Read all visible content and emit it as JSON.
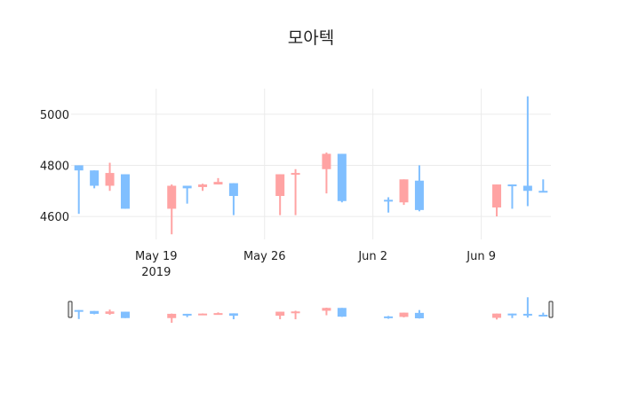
{
  "title": "모아텍",
  "chart_data": {
    "type": "candlestick",
    "title": "모아텍",
    "xlabel": "",
    "ylabel": "",
    "ylim": [
      4510,
      5100
    ],
    "yticks": [
      4600,
      4800,
      5000
    ],
    "xticks": [
      {
        "date": "2019-05-19",
        "label": "May 19",
        "sublabel": "2019"
      },
      {
        "date": "2019-05-26",
        "label": "May 26",
        "sublabel": ""
      },
      {
        "date": "2019-06-02",
        "label": "Jun 2",
        "sublabel": ""
      },
      {
        "date": "2019-06-09",
        "label": "Jun 9",
        "sublabel": ""
      }
    ],
    "xrange": [
      "2019-05-13T12:00",
      "2019-06-13T12:00"
    ],
    "grid": true,
    "legend": false,
    "rangeslider": true,
    "increasing_color": "#ffa3a3",
    "decreasing_color": "#80bfff",
    "x": [
      "2019-05-14",
      "2019-05-15",
      "2019-05-16",
      "2019-05-17",
      "2019-05-20",
      "2019-05-21",
      "2019-05-22",
      "2019-05-23",
      "2019-05-24",
      "2019-05-27",
      "2019-05-28",
      "2019-05-30",
      "2019-05-31",
      "2019-06-03",
      "2019-06-04",
      "2019-06-05",
      "2019-06-10",
      "2019-06-11",
      "2019-06-12",
      "2019-06-13"
    ],
    "open": [
      4800,
      4780,
      4720,
      4765,
      4630,
      4720,
      4715,
      4725,
      4730,
      4680,
      4765,
      4785,
      4845,
      4665,
      4655,
      4740,
      4635,
      4725,
      4720,
      4700
    ],
    "high": [
      4800,
      4780,
      4810,
      4765,
      4725,
      4720,
      4728,
      4750,
      4730,
      4765,
      4785,
      4850,
      4845,
      4675,
      4745,
      4800,
      4725,
      4725,
      5070,
      4745
    ],
    "low": [
      4610,
      4710,
      4700,
      4630,
      4530,
      4650,
      4700,
      4725,
      4605,
      4605,
      4605,
      4690,
      4655,
      4615,
      4645,
      4620,
      4600,
      4630,
      4640,
      4695
    ],
    "close": [
      4780,
      4720,
      4770,
      4630,
      4720,
      4710,
      4725,
      4735,
      4680,
      4765,
      4770,
      4845,
      4660,
      4660,
      4745,
      4625,
      4725,
      4720,
      4700,
      4695
    ]
  }
}
